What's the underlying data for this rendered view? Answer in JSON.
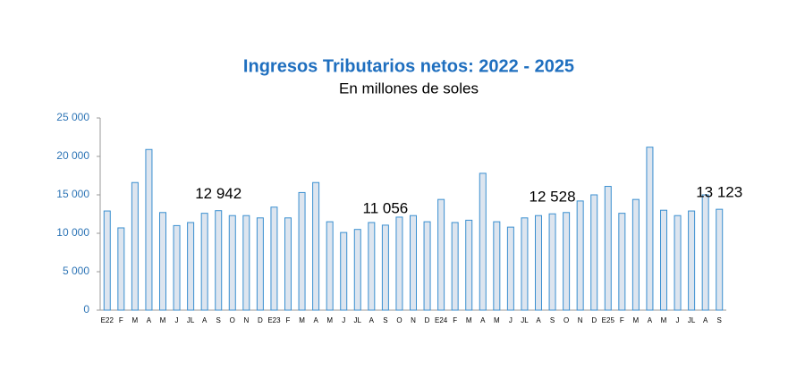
{
  "chart_data": {
    "type": "bar",
    "title": "Ingresos Tributarios netos: 2022 - 2025",
    "subtitle": "En millones de soles",
    "categories": [
      "E22",
      "F",
      "M",
      "A",
      "M",
      "J",
      "JL",
      "A",
      "S",
      "O",
      "N",
      "D",
      "E23",
      "F",
      "M",
      "A",
      "M",
      "J",
      "JL",
      "A",
      "S",
      "O",
      "N",
      "D",
      "E24",
      "F",
      "M",
      "A",
      "M",
      "J",
      "JL",
      "A",
      "S",
      "O",
      "N",
      "D",
      "E25",
      "F",
      "M",
      "A",
      "M",
      "J",
      "JL",
      "A",
      "S"
    ],
    "values": [
      12900,
      10700,
      16600,
      20900,
      12700,
      11000,
      11400,
      12600,
      12942,
      12300,
      12300,
      12000,
      13400,
      12000,
      15300,
      16600,
      11500,
      10100,
      10500,
      11400,
      11056,
      12100,
      12300,
      11500,
      14400,
      11400,
      11700,
      17800,
      11500,
      10800,
      12000,
      12300,
      12528,
      12700,
      14200,
      15000,
      16100,
      12600,
      14400,
      21200,
      13000,
      12300,
      12900,
      15000,
      13123
    ],
    "value_labels": [
      null,
      null,
      null,
      null,
      null,
      null,
      null,
      null,
      "12 942",
      null,
      null,
      null,
      null,
      null,
      null,
      null,
      null,
      null,
      null,
      null,
      "11 056",
      null,
      null,
      null,
      null,
      null,
      null,
      null,
      null,
      null,
      null,
      null,
      "12 528",
      null,
      null,
      null,
      null,
      null,
      null,
      null,
      null,
      null,
      null,
      null,
      "13 123"
    ],
    "color": "#dde5ef",
    "edge_color": "#3a8fd0",
    "ylim": [
      0,
      25000
    ],
    "yticks": [
      0,
      {
        "value": 5000,
        "label": "5 000"
      },
      {
        "value": 10000,
        "label": "10 000"
      },
      {
        "value": 15000,
        "label": "15 000"
      },
      {
        "value": 20000,
        "label": "20 000"
      },
      {
        "value": 25000,
        "label": "25 000"
      }
    ],
    "grid": false
  }
}
